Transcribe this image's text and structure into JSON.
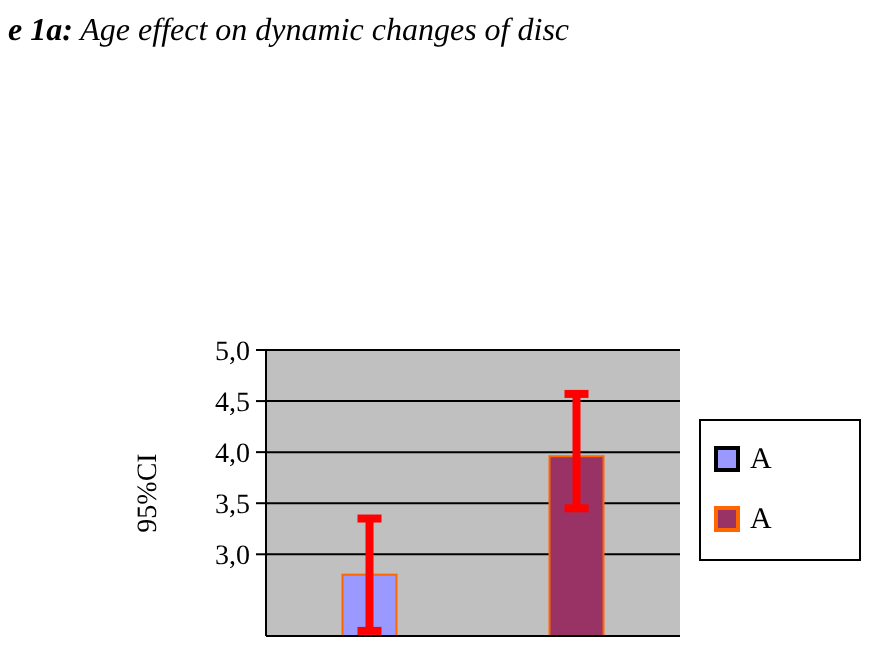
{
  "chart_data": {
    "type": "bar",
    "title": "e 1a: Age effect on dynamic changes of disc",
    "ylabel": "95%CI",
    "categories": [
      null
    ],
    "series": [
      {
        "name": "A",
        "color": "#9999ff",
        "values": [
          2.8
        ],
        "errors": [
          0.55
        ]
      },
      {
        "name": "A",
        "color": "#993366",
        "values": [
          3.96
        ],
        "errors": [
          [
            3.45,
            4.57
          ]
        ]
      }
    ],
    "ylim": [
      2.2,
      5.0
    ],
    "yticks": [
      {
        "value": 3.0,
        "label": "3,0"
      },
      {
        "value": 3.5,
        "label": "3,5"
      },
      {
        "value": 4.0,
        "label": "4,0"
      },
      {
        "value": 4.5,
        "label": "4,5"
      },
      {
        "value": 5.0,
        "label": "5,0"
      }
    ],
    "grid": "y",
    "legend": "right"
  }
}
